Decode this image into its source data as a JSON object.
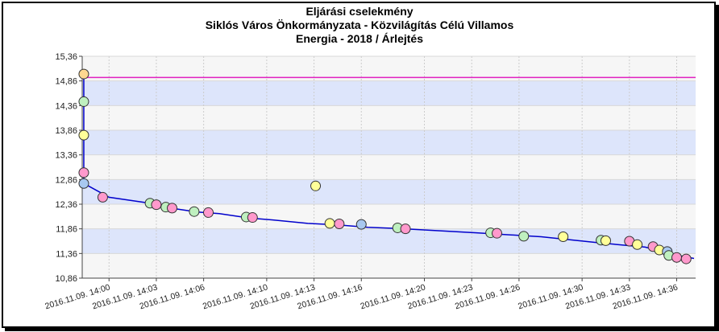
{
  "chart_data": {
    "type": "scatter",
    "title_lines": [
      "Eljárási cselekmény",
      "Siklós Város Önkormányzata - Közvilágítás Célú Villamos",
      "Energia - 2018 / Árlejtés"
    ],
    "y_ticks": [
      "15,36",
      "14,86",
      "14,36",
      "13,86",
      "13,36",
      "12,86",
      "12,36",
      "11,86",
      "11,36",
      "10,86"
    ],
    "ylim": [
      10.86,
      15.36
    ],
    "x_ticks": [
      "2016.11.09. 14:00",
      "2016.11.09. 14:03",
      "2016.11.09. 14:06",
      "2016.11.09. 14:10",
      "2016.11.09. 14:13",
      "2016.11.09. 14:16",
      "2016.11.09. 14:20",
      "2016.11.09. 14:23",
      "2016.11.09. 14:26",
      "2016.11.09. 14:30",
      "2016.11.09. 14:33",
      "2016.11.09. 14:36"
    ],
    "x_tick_minutes": [
      0,
      3,
      6,
      10,
      13,
      16,
      20,
      23,
      26,
      30,
      33,
      36
    ],
    "xlim_minutes": [
      -1.7,
      37.2
    ],
    "reference_line": {
      "y": 14.93,
      "color": "#e020c0"
    },
    "line": {
      "color": "#0000cc",
      "points": [
        [
          -1.6,
          12.78
        ],
        [
          0.0,
          12.5
        ],
        [
          2.8,
          12.37
        ],
        [
          3.7,
          12.29
        ],
        [
          5.6,
          12.2
        ],
        [
          7.0,
          12.17
        ],
        [
          8.9,
          12.08
        ],
        [
          10.4,
          12.04
        ],
        [
          12.6,
          11.97
        ],
        [
          14.5,
          11.94
        ],
        [
          16.4,
          11.89
        ],
        [
          18.2,
          11.87
        ],
        [
          23.3,
          11.78
        ],
        [
          27.4,
          11.7
        ],
        [
          31.3,
          11.57
        ],
        [
          34.0,
          11.49
        ],
        [
          35.8,
          11.34
        ],
        [
          37.1,
          11.26
        ]
      ]
    },
    "points": [
      {
        "x": -1.6,
        "y": 15.0,
        "color": "#ffd890"
      },
      {
        "x": -1.6,
        "y": 14.44,
        "color": "#bff0bf"
      },
      {
        "x": -1.6,
        "y": 13.76,
        "color": "#ffff99"
      },
      {
        "x": -1.6,
        "y": 13.0,
        "color": "#ff99cc"
      },
      {
        "x": -1.6,
        "y": 12.78,
        "color": "#a8c8f0"
      },
      {
        "x": -0.4,
        "y": 12.5,
        "color": "#ff99cc"
      },
      {
        "x": 2.6,
        "y": 12.38,
        "color": "#bff0bf"
      },
      {
        "x": 3.0,
        "y": 12.35,
        "color": "#ff99cc"
      },
      {
        "x": 3.6,
        "y": 12.3,
        "color": "#bff0bf"
      },
      {
        "x": 4.0,
        "y": 12.28,
        "color": "#ff99cc"
      },
      {
        "x": 5.4,
        "y": 12.21,
        "color": "#bff0bf"
      },
      {
        "x": 6.3,
        "y": 12.19,
        "color": "#ff99cc"
      },
      {
        "x": 8.7,
        "y": 12.1,
        "color": "#bff0bf"
      },
      {
        "x": 9.1,
        "y": 12.09,
        "color": "#ff99cc"
      },
      {
        "x": 13.1,
        "y": 12.73,
        "color": "#ffff99"
      },
      {
        "x": 14.0,
        "y": 11.97,
        "color": "#ffff99"
      },
      {
        "x": 14.6,
        "y": 11.96,
        "color": "#ff99cc"
      },
      {
        "x": 16.0,
        "y": 11.95,
        "color": "#a8c8f0"
      },
      {
        "x": 18.3,
        "y": 11.88,
        "color": "#bff0bf"
      },
      {
        "x": 18.8,
        "y": 11.86,
        "color": "#ff99cc"
      },
      {
        "x": 24.2,
        "y": 11.78,
        "color": "#bff0bf"
      },
      {
        "x": 24.6,
        "y": 11.77,
        "color": "#ff99cc"
      },
      {
        "x": 26.3,
        "y": 11.71,
        "color": "#bff0bf"
      },
      {
        "x": 28.8,
        "y": 11.7,
        "color": "#ffff99"
      },
      {
        "x": 31.2,
        "y": 11.63,
        "color": "#bff0bf"
      },
      {
        "x": 31.5,
        "y": 11.62,
        "color": "#ffff99"
      },
      {
        "x": 33.0,
        "y": 11.61,
        "color": "#ff99cc"
      },
      {
        "x": 33.5,
        "y": 11.54,
        "color": "#ffff99"
      },
      {
        "x": 34.5,
        "y": 11.5,
        "color": "#ff99cc"
      },
      {
        "x": 34.9,
        "y": 11.43,
        "color": "#ffff99"
      },
      {
        "x": 35.4,
        "y": 11.4,
        "color": "#a8c8f0"
      },
      {
        "x": 35.5,
        "y": 11.32,
        "color": "#bff0bf"
      },
      {
        "x": 36.0,
        "y": 11.28,
        "color": "#ff99cc"
      },
      {
        "x": 36.6,
        "y": 11.25,
        "color": "#ff99cc"
      }
    ],
    "band_color": "#dde5fb",
    "grid": true
  }
}
